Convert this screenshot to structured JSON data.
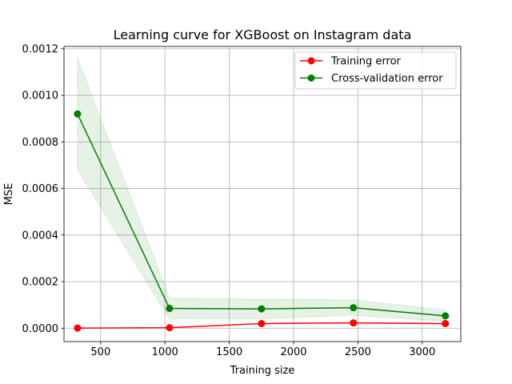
{
  "chart_data": {
    "type": "line",
    "title": "Learning curve for XGBoost on Instagram data",
    "xlabel": "Training size",
    "ylabel": "MSE",
    "xlim": [
      215,
      3300
    ],
    "ylim": [
      -5.75e-05,
      0.00121
    ],
    "x_ticks": [
      500,
      1000,
      1500,
      2000,
      2500,
      3000
    ],
    "x_tick_labels": [
      "500",
      "1000",
      "1500",
      "2000",
      "2500",
      "3000"
    ],
    "y_ticks": [
      0.0,
      0.0002,
      0.0004,
      0.0006,
      0.0008,
      0.001,
      0.0012
    ],
    "y_tick_labels": [
      "0.0000",
      "0.0002",
      "0.0004",
      "0.0006",
      "0.0008",
      "0.0010",
      "0.0012"
    ],
    "grid": true,
    "legend_position": "top-right",
    "x": [
      320,
      1035,
      1750,
      2465,
      3180
    ],
    "series": [
      {
        "name": "Training error",
        "color": "#ff0000",
        "values": [
          5e-07,
          2e-06,
          2e-05,
          2.3e-05,
          2e-05
        ]
      },
      {
        "name": "Cross-validation error",
        "color": "#008000",
        "values": [
          0.00092,
          8.5e-05,
          8.3e-05,
          8.8e-05,
          5.3e-05
        ],
        "band_lower": [
          0.00068,
          4e-05,
          4e-05,
          5.5e-05,
          3e-05
        ],
        "band_upper": [
          0.00116,
          0.00013,
          0.000125,
          0.000122,
          7.8e-05
        ],
        "band_color": "#008000"
      }
    ]
  }
}
